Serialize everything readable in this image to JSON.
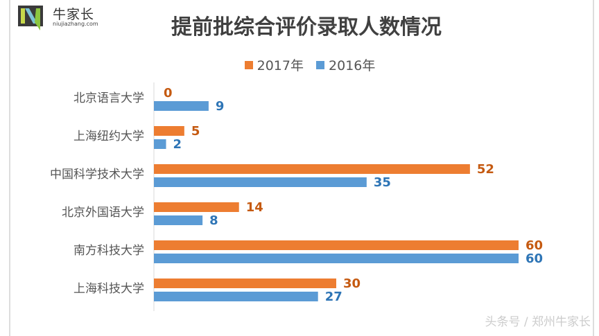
{
  "logo": {
    "name": "牛家长",
    "url": "niujiazhang.com"
  },
  "watermark": "头条号 / 郑州牛家长",
  "colors": {
    "s2017": "#ED7D31",
    "s2016": "#5B9BD5",
    "label2017": "#C55A11",
    "label2016": "#2E75B6"
  },
  "chart_data": {
    "type": "bar",
    "orientation": "horizontal",
    "title": "提前批综合评价录取人数情况",
    "categories": [
      "北京语言大学",
      "上海纽约大学",
      "中国科学技术大学",
      "北京外国语大学",
      "南方科技大学",
      "上海科技大学"
    ],
    "series": [
      {
        "name": "2017年",
        "values": [
          0,
          5,
          52,
          14,
          60,
          30
        ]
      },
      {
        "name": "2016年",
        "values": [
          9,
          2,
          35,
          8,
          60,
          27
        ]
      }
    ],
    "xlim": [
      0,
      60
    ],
    "grid": false,
    "legend": "top"
  }
}
